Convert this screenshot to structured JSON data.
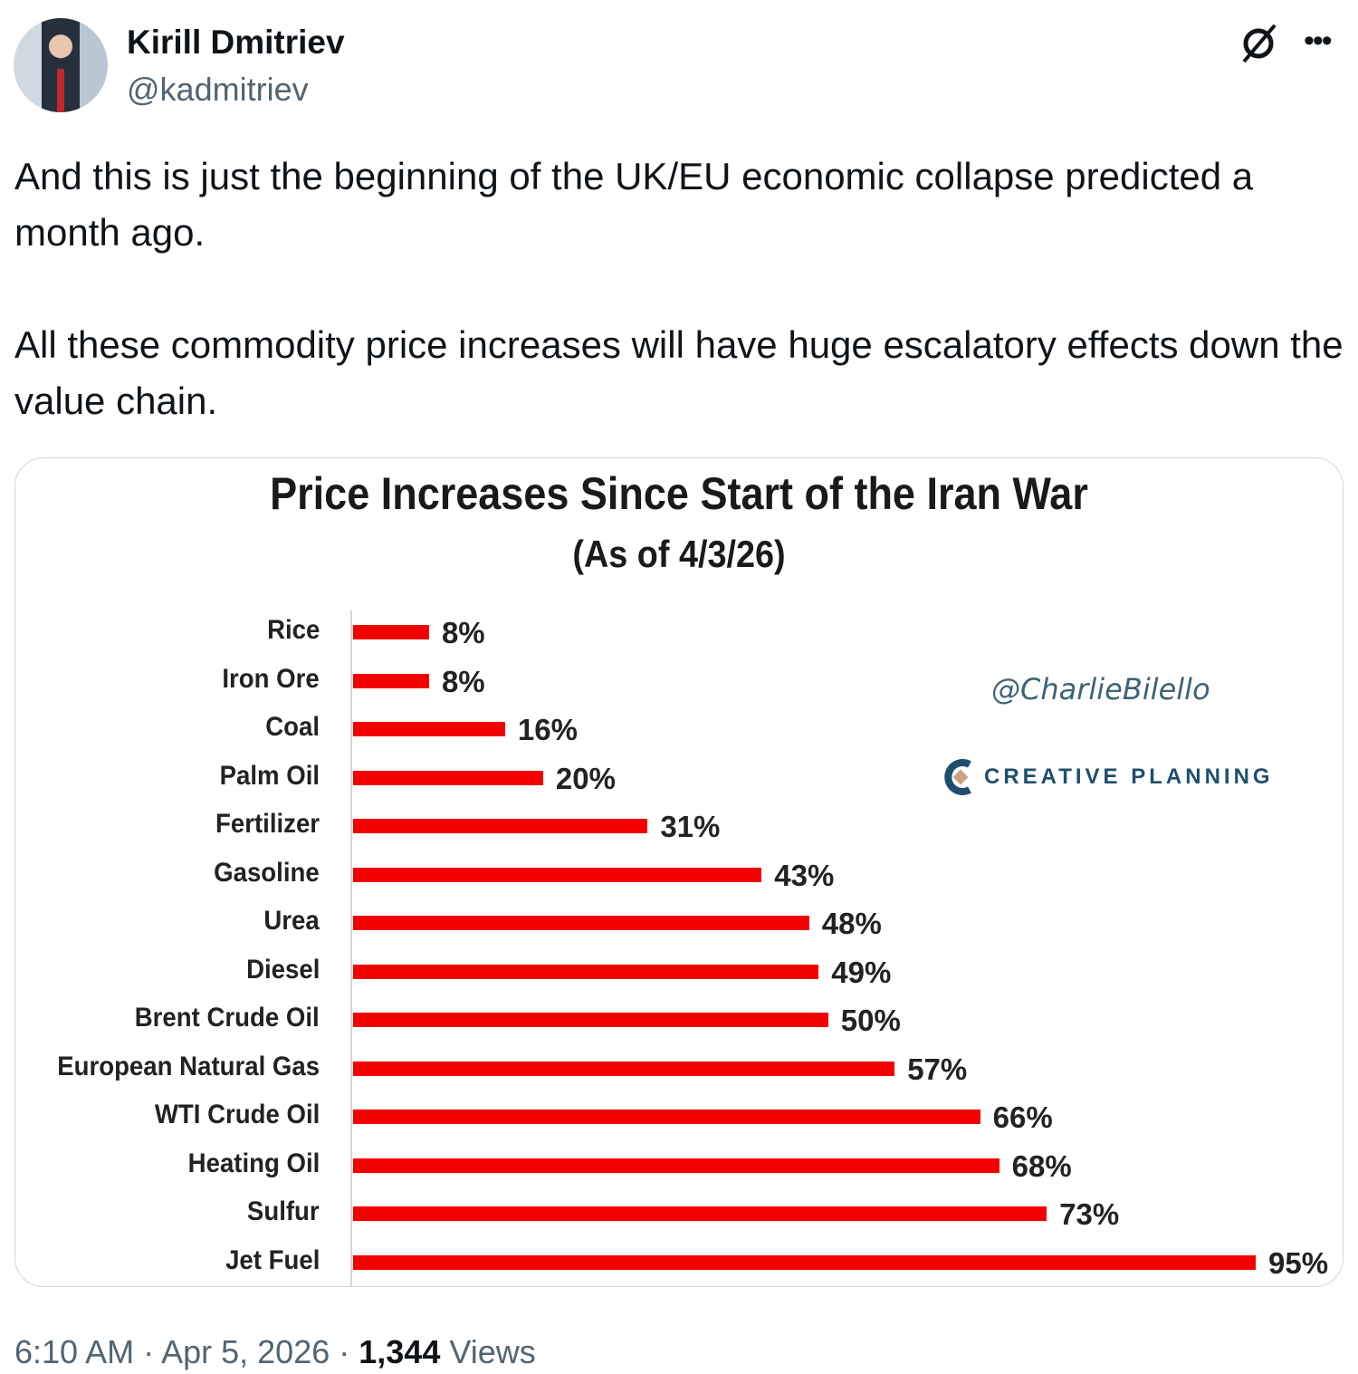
{
  "author": {
    "name": "Kirill Dmitriev",
    "handle": "@kadmitriev"
  },
  "icons": [
    "grok-icon",
    "more-icon"
  ],
  "tweet_text": "And this is just the beginning of the UK/EU economic collapse predicted a month ago.\n\nAll these commodity price increases will have huge escalatory effects down the value chain.",
  "chart_data": {
    "type": "bar",
    "orientation": "horizontal",
    "title": "Price Increases Since Start of the Iran War",
    "subtitle": "(As of 4/3/26)",
    "categories": [
      "Rice",
      "Iron Ore",
      "Coal",
      "Palm Oil",
      "Fertilizer",
      "Gasoline",
      "Urea",
      "Diesel",
      "Brent Crude Oil",
      "European Natural Gas",
      "WTI Crude Oil",
      "Heating Oil",
      "Sulfur",
      "Jet Fuel"
    ],
    "values": [
      8,
      8,
      16,
      20,
      31,
      43,
      48,
      49,
      50,
      57,
      66,
      68,
      73,
      95
    ],
    "labels": [
      "8%",
      "8%",
      "16%",
      "20%",
      "31%",
      "43%",
      "48%",
      "49%",
      "50%",
      "57%",
      "66%",
      "68%",
      "73%",
      "95%"
    ],
    "color": "#f50000",
    "xlim": [
      0,
      95
    ],
    "watermark": "@CharlieBilello",
    "brand": "CREATIVE PLANNING"
  },
  "footer": {
    "time": "6:10 AM",
    "date": "Apr 5, 2026",
    "views_count": "1,344",
    "views_label": "Views"
  }
}
